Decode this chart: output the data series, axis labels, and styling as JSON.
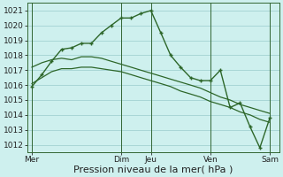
{
  "background_color": "#cef0ee",
  "grid_color": "#99cccc",
  "line_color": "#2d6629",
  "ylim": [
    1011.5,
    1021.5
  ],
  "yticks": [
    1012,
    1013,
    1014,
    1015,
    1016,
    1017,
    1018,
    1019,
    1020,
    1021
  ],
  "xlabel": "Pression niveau de la mer( hPa )",
  "xlabel_fontsize": 8,
  "tick_fontsize": 6.5,
  "day_labels": [
    "Mer",
    "Dim",
    "Jeu",
    "Ven",
    "Sam"
  ],
  "day_positions": [
    0.0,
    0.375,
    0.5,
    0.75,
    1.0
  ],
  "vline_positions": [
    0.0,
    0.375,
    0.5,
    0.75,
    1.0
  ],
  "xlim": [
    -0.02,
    1.04
  ],
  "main_x": [
    0.0,
    0.042,
    0.083,
    0.125,
    0.167,
    0.208,
    0.25,
    0.292,
    0.333,
    0.375,
    0.417,
    0.458,
    0.5,
    0.542,
    0.583,
    0.625,
    0.667,
    0.708,
    0.75,
    0.792,
    0.833,
    0.875,
    0.917,
    0.958,
    1.0
  ],
  "main_y": [
    1015.9,
    1016.7,
    1017.6,
    1018.4,
    1018.5,
    1018.8,
    1018.8,
    1019.5,
    1020.0,
    1020.5,
    1020.5,
    1020.8,
    1021.0,
    1019.5,
    1018.0,
    1017.2,
    1016.5,
    1016.3,
    1016.3,
    1017.0,
    1014.5,
    1014.8,
    1013.2,
    1011.8,
    1013.8
  ],
  "env1_x": [
    0.0,
    0.042,
    0.083,
    0.125,
    0.167,
    0.208,
    0.25,
    0.292,
    0.333,
    0.375,
    0.417,
    0.458,
    0.5,
    0.542,
    0.583,
    0.625,
    0.667,
    0.708,
    0.75,
    0.792,
    0.833,
    0.875,
    0.917,
    0.958,
    1.0
  ],
  "env1_y": [
    1017.2,
    1017.5,
    1017.7,
    1017.8,
    1017.7,
    1017.9,
    1017.9,
    1017.8,
    1017.6,
    1017.4,
    1017.2,
    1017.0,
    1016.8,
    1016.6,
    1016.4,
    1016.2,
    1016.0,
    1015.8,
    1015.5,
    1015.2,
    1015.0,
    1014.7,
    1014.5,
    1014.3,
    1014.1
  ],
  "env2_x": [
    0.0,
    0.042,
    0.083,
    0.125,
    0.167,
    0.208,
    0.25,
    0.292,
    0.333,
    0.375,
    0.417,
    0.458,
    0.5,
    0.542,
    0.583,
    0.625,
    0.667,
    0.708,
    0.75,
    0.792,
    0.833,
    0.875,
    0.917,
    0.958,
    1.0
  ],
  "env2_y": [
    1016.1,
    1016.5,
    1016.9,
    1017.1,
    1017.1,
    1017.2,
    1017.2,
    1017.1,
    1017.0,
    1016.9,
    1016.7,
    1016.5,
    1016.3,
    1016.1,
    1015.9,
    1015.6,
    1015.4,
    1015.2,
    1014.9,
    1014.7,
    1014.5,
    1014.2,
    1014.0,
    1013.7,
    1013.5
  ]
}
